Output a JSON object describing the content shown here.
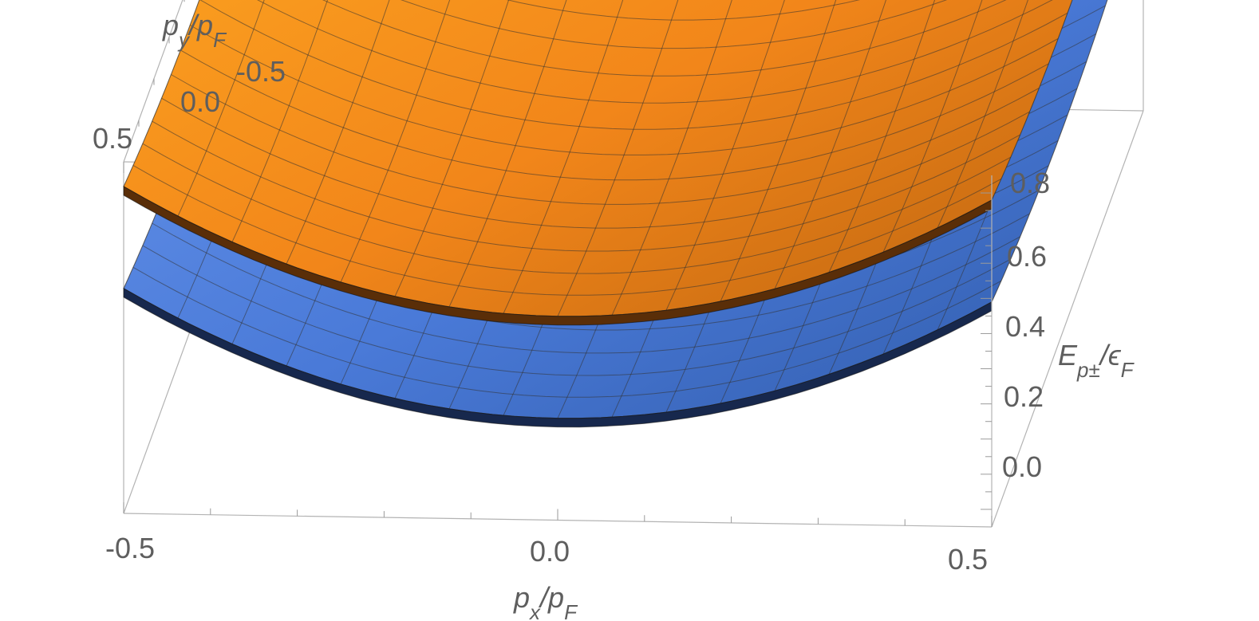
{
  "chart_data": {
    "type": "surface3d",
    "x_axis": {
      "label": "p_x/p_F",
      "range": [
        -0.5,
        0.5
      ],
      "ticks": [
        "-0.5",
        "0.0",
        "0.5"
      ]
    },
    "y_axis": {
      "label": "p_y/p_F",
      "range": [
        -0.5,
        0.5
      ],
      "ticks": [
        "-0.5",
        "0.0",
        "0.5"
      ]
    },
    "z_axis": {
      "label": "E_{p±}/ϵ_F",
      "range": [
        -0.15,
        0.85
      ],
      "ticks": [
        "0.0",
        "0.2",
        "0.4",
        "0.6",
        "0.8"
      ]
    },
    "series": [
      {
        "surface": "upper",
        "min_value": 0.37,
        "corner_value": 0.78,
        "edge_x_value": 0.72,
        "edge_y_value": 0.43,
        "color_top": "#ffa41e",
        "color_mid": "#f08a18",
        "color_edge": "#5a2e08"
      },
      {
        "surface": "lower",
        "min_value": 0.08,
        "corner_value": 0.49,
        "edge_x_value": 0.43,
        "edge_y_value": 0.14,
        "color_top": "#5a8ae6",
        "color_mid": "#4a78d6",
        "color_edge": "#17284d"
      }
    ],
    "grid": true,
    "mesh_lines": 16
  }
}
